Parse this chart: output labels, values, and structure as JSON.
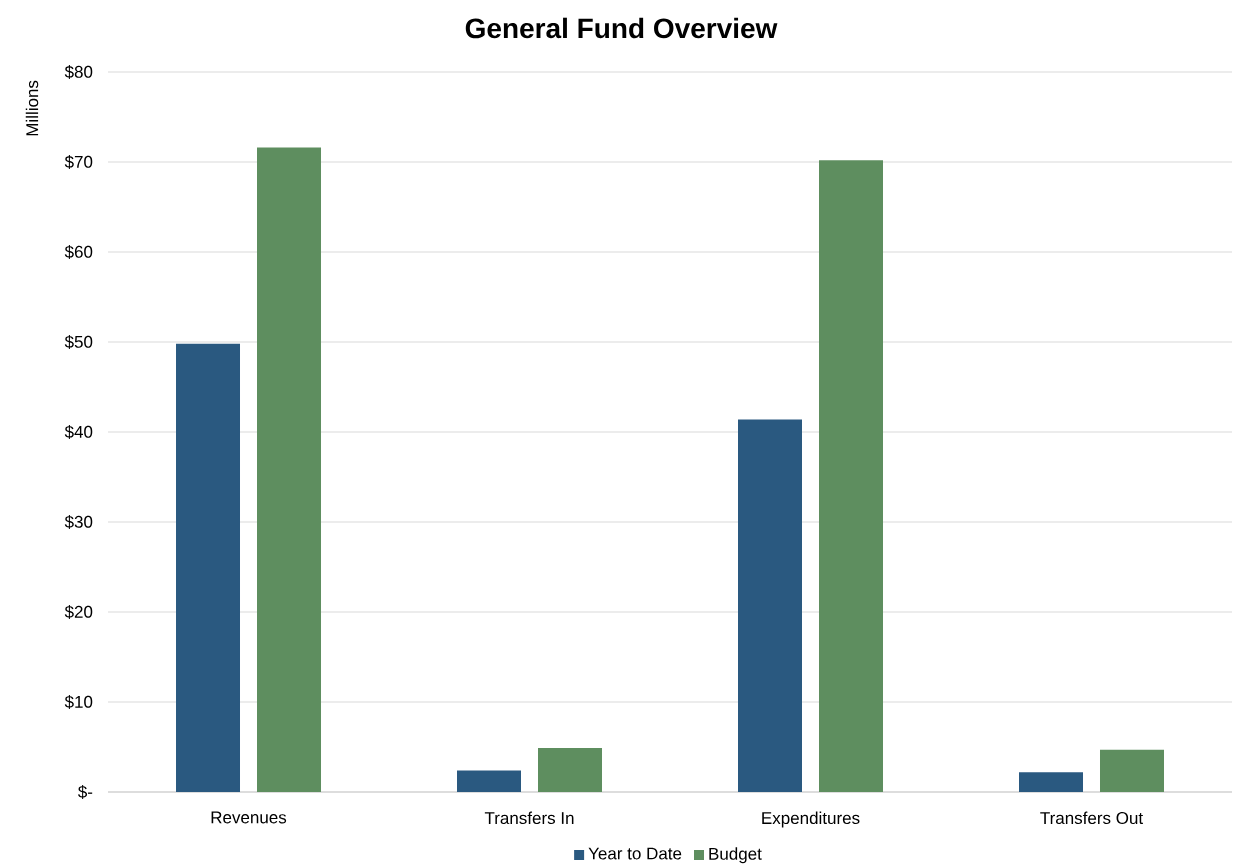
{
  "chart_data": {
    "type": "bar",
    "title": "General Fund Overview",
    "ylabel": "Millions",
    "categories": [
      "Revenues",
      "Transfers In",
      "Expenditures",
      "Transfers Out"
    ],
    "series": [
      {
        "name": "Year to Date",
        "color": "#2a5980",
        "values": [
          49.8,
          2.4,
          41.4,
          2.2
        ]
      },
      {
        "name": "Budget",
        "color": "#5e8e5f",
        "values": [
          71.6,
          4.9,
          70.2,
          4.7
        ]
      }
    ],
    "ylim": [
      0,
      80
    ],
    "yticks": [
      {
        "value": 0,
        "label": "$-"
      },
      {
        "value": 10,
        "label": "$10"
      },
      {
        "value": 20,
        "label": "$20"
      },
      {
        "value": 30,
        "label": "$30"
      },
      {
        "value": 40,
        "label": "$40"
      },
      {
        "value": 50,
        "label": "$50"
      },
      {
        "value": 60,
        "label": "$60"
      },
      {
        "value": 70,
        "label": "$70"
      },
      {
        "value": 80,
        "label": "$80"
      }
    ],
    "grid": "y",
    "legend": "bottom"
  }
}
